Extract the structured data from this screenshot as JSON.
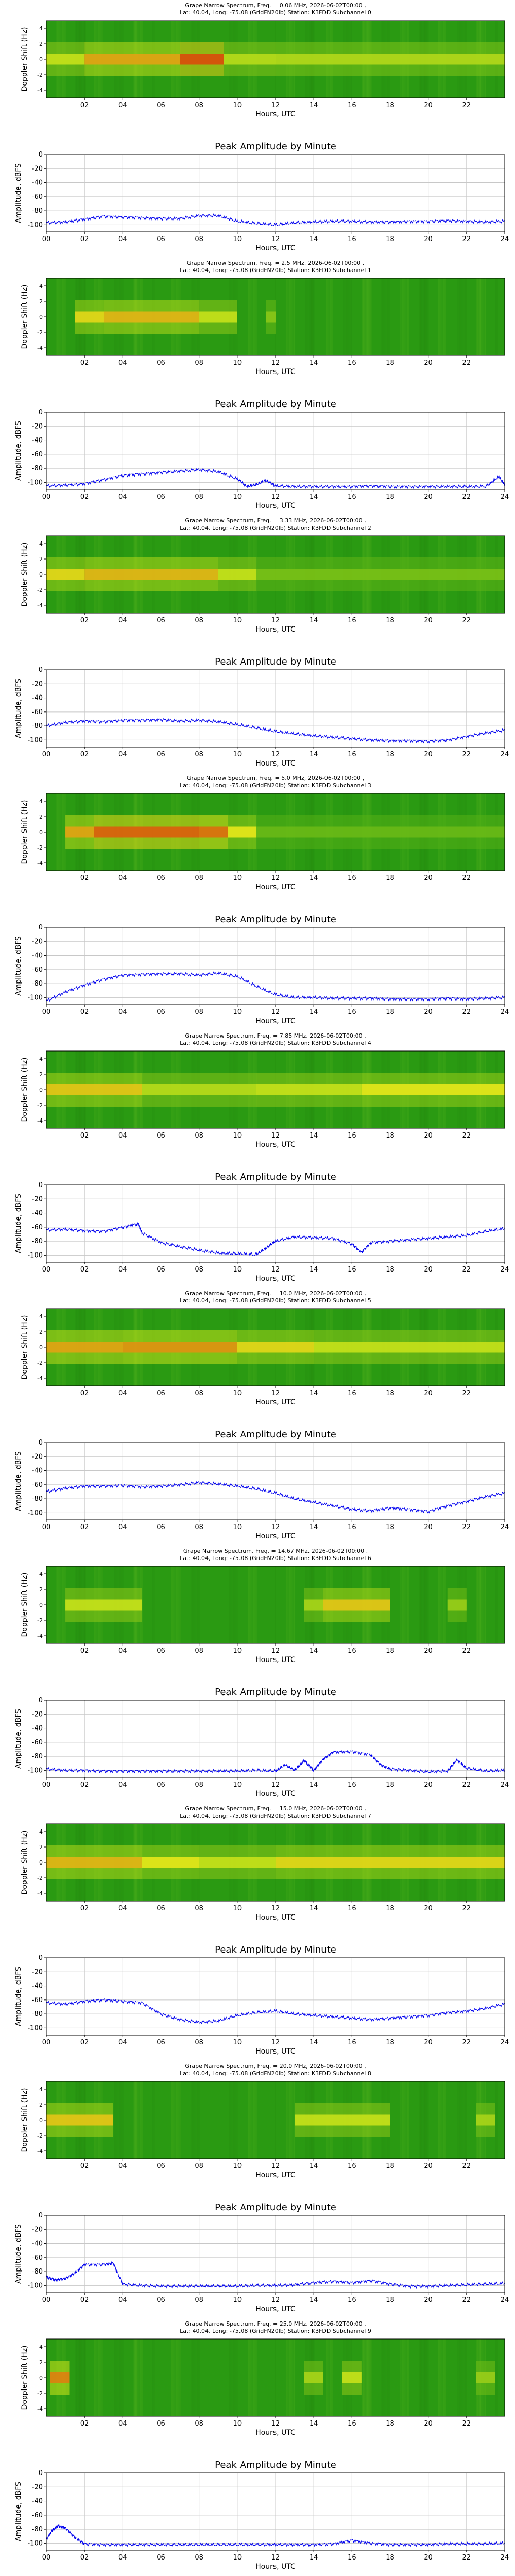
{
  "colors": {
    "spectrogram_background": "#2a9a12",
    "spectrogram_hot": "#d83a08",
    "amplitude_line": "#0000ee",
    "grid": "#c8c8c8"
  },
  "common": {
    "spec_title_line2_prefix": "Lat:  40.04, Long: -75.08 (GridFN20lb) Station: K3FDD Subchannel ",
    "spec_ylabel": "Doppler Shift (Hz)",
    "spec_yticks": [
      "4",
      "2",
      "0",
      "-2",
      "-4"
    ],
    "spec_xticks": [
      "02",
      "04",
      "06",
      "08",
      "10",
      "12",
      "14",
      "16",
      "18",
      "20",
      "22"
    ],
    "amp_title": "Peak Amplitude by Minute",
    "amp_ylabel": "Amplitude, dBFS",
    "amp_xticks": [
      "00",
      "02",
      "04",
      "06",
      "08",
      "10",
      "12",
      "14",
      "16",
      "18",
      "20",
      "22",
      "24"
    ],
    "amp_yticks": [
      "0",
      "-20",
      "-40",
      "-60",
      "-80",
      "-100"
    ],
    "xlabel": "Hours, UTC"
  },
  "chart_data": [
    {
      "type": "heatmap",
      "title": "Grape Narrow Spectrum, Freq. = 0.06 MHz, 2026-06-02T00:00 , ",
      "subchannel": "0",
      "xlim": [
        0,
        24
      ],
      "ylim": [
        -5,
        5
      ],
      "bands": [
        {
          "x0": 0,
          "x1": 2,
          "level": 0.45
        },
        {
          "x0": 2,
          "x1": 7,
          "level": 0.7
        },
        {
          "x0": 7,
          "x1": 9.3,
          "level": 0.95
        },
        {
          "x0": 9.3,
          "x1": 12,
          "level": 0.4
        },
        {
          "x0": 12,
          "x1": 24,
          "level": 0.38
        }
      ]
    },
    {
      "type": "line",
      "title": "Peak Amplitude by Minute",
      "xlabel": "Hours, UTC",
      "ylabel": "Amplitude, dBFS",
      "xlim": [
        0,
        24
      ],
      "ylim": [
        -110,
        0
      ],
      "x": [
        0,
        1,
        2,
        3,
        4,
        5,
        6,
        7,
        8,
        9,
        10,
        11,
        12,
        13,
        14,
        15,
        16,
        17,
        18,
        19,
        20,
        21,
        22,
        23,
        24
      ],
      "y": [
        -97,
        -96,
        -92,
        -88,
        -89,
        -90,
        -91,
        -91,
        -87,
        -87,
        -95,
        -98,
        -100,
        -97,
        -96,
        -95,
        -95,
        -96,
        -96,
        -95,
        -95,
        -94,
        -95,
        -96,
        -95
      ]
    },
    {
      "type": "heatmap",
      "title": "Grape Narrow Spectrum, Freq. = 2.5 MHz, 2026-06-02T00:00 , ",
      "subchannel": "1",
      "xlim": [
        0,
        24
      ],
      "ylim": [
        -5,
        5
      ],
      "bands": [
        {
          "x0": 1.5,
          "x1": 3,
          "level": 0.55
        },
        {
          "x0": 3,
          "x1": 8,
          "level": 0.65
        },
        {
          "x0": 8,
          "x1": 10,
          "level": 0.45
        },
        {
          "x0": 11.5,
          "x1": 12,
          "level": 0.25
        }
      ]
    },
    {
      "type": "line",
      "title": "Peak Amplitude by Minute",
      "xlabel": "Hours, UTC",
      "ylabel": "Amplitude, dBFS",
      "xlim": [
        0,
        24
      ],
      "ylim": [
        -110,
        0
      ],
      "x": [
        0,
        1,
        2,
        3,
        4,
        5,
        6,
        7,
        8,
        9,
        10,
        10.5,
        11,
        11.5,
        12,
        13,
        14,
        15,
        16,
        17,
        18,
        19,
        20,
        21,
        22,
        23,
        23.7,
        24
      ],
      "y": [
        -105,
        -104,
        -102,
        -96,
        -90,
        -88,
        -86,
        -84,
        -82,
        -85,
        -95,
        -106,
        -103,
        -97,
        -105,
        -106,
        -106,
        -106,
        -106,
        -105,
        -106,
        -106,
        -106,
        -106,
        -106,
        -106,
        -92,
        -104
      ]
    },
    {
      "type": "heatmap",
      "title": "Grape Narrow Spectrum, Freq. = 3.33 MHz, 2026-06-02T00:00 , ",
      "subchannel": "2",
      "xlim": [
        0,
        24
      ],
      "ylim": [
        -5,
        5
      ],
      "bands": [
        {
          "x0": 0,
          "x1": 2,
          "level": 0.55
        },
        {
          "x0": 2,
          "x1": 9,
          "level": 0.65
        },
        {
          "x0": 9,
          "x1": 11,
          "level": 0.45
        },
        {
          "x0": 11,
          "x1": 24,
          "level": 0.2
        }
      ]
    },
    {
      "type": "line",
      "title": "Peak Amplitude by Minute",
      "xlabel": "Hours, UTC",
      "ylabel": "Amplitude, dBFS",
      "xlim": [
        0,
        24
      ],
      "ylim": [
        -110,
        0
      ],
      "x": [
        0,
        1,
        2,
        3,
        4,
        5,
        6,
        7,
        8,
        9,
        10,
        11,
        12,
        13,
        14,
        15,
        16,
        17,
        18,
        19,
        20,
        21,
        22,
        23,
        24
      ],
      "y": [
        -80,
        -75,
        -73,
        -74,
        -72,
        -72,
        -71,
        -73,
        -72,
        -74,
        -78,
        -83,
        -88,
        -91,
        -94,
        -96,
        -98,
        -100,
        -101,
        -101,
        -102,
        -100,
        -95,
        -90,
        -86
      ]
    },
    {
      "type": "heatmap",
      "title": "Grape Narrow Spectrum, Freq. = 5.0 MHz, 2026-06-02T00:00 , ",
      "subchannel": "3",
      "xlim": [
        0,
        24
      ],
      "ylim": [
        -5,
        5
      ],
      "bands": [
        {
          "x0": 1,
          "x1": 2.5,
          "level": 0.7
        },
        {
          "x0": 2.5,
          "x1": 8,
          "level": 0.9
        },
        {
          "x0": 8,
          "x1": 9.5,
          "level": 0.85
        },
        {
          "x0": 9.5,
          "x1": 11,
          "level": 0.5
        },
        {
          "x0": 11,
          "x1": 24,
          "level": 0.15
        }
      ]
    },
    {
      "type": "line",
      "title": "Peak Amplitude by Minute",
      "xlabel": "Hours, UTC",
      "ylabel": "Amplitude, dBFS",
      "xlim": [
        0,
        24
      ],
      "ylim": [
        -110,
        0
      ],
      "x": [
        0,
        1,
        2,
        3,
        4,
        5,
        6,
        7,
        8,
        9,
        10,
        11,
        12,
        13,
        14,
        15,
        16,
        17,
        18,
        19,
        20,
        21,
        22,
        23,
        24
      ],
      "y": [
        -105,
        -92,
        -82,
        -74,
        -68,
        -67,
        -66,
        -66,
        -68,
        -65,
        -70,
        -84,
        -96,
        -100,
        -100,
        -101,
        -101,
        -101,
        -102,
        -102,
        -102,
        -101,
        -102,
        -101,
        -100
      ]
    },
    {
      "type": "heatmap",
      "title": "Grape Narrow Spectrum, Freq. = 7.85 MHz, 2026-06-02T00:00 , ",
      "subchannel": "4",
      "xlim": [
        0,
        24
      ],
      "ylim": [
        -5,
        5
      ],
      "bands": [
        {
          "x0": 0,
          "x1": 5,
          "level": 0.6
        },
        {
          "x0": 5,
          "x1": 11,
          "level": 0.4
        },
        {
          "x0": 11,
          "x1": 16.5,
          "level": 0.45
        },
        {
          "x0": 16.5,
          "x1": 24,
          "level": 0.5
        }
      ]
    },
    {
      "type": "line",
      "title": "Peak Amplitude by Minute",
      "xlabel": "Hours, UTC",
      "ylabel": "Amplitude, dBFS",
      "xlim": [
        0,
        24
      ],
      "ylim": [
        -110,
        0
      ],
      "x": [
        0,
        1,
        2,
        3,
        4,
        4.8,
        5,
        6,
        7,
        8,
        9,
        10,
        11,
        11.5,
        12,
        13,
        14,
        15,
        16,
        16.5,
        17,
        18,
        19,
        20,
        21,
        22,
        23,
        24
      ],
      "y": [
        -64,
        -63,
        -65,
        -66,
        -60,
        -55,
        -68,
        -82,
        -88,
        -93,
        -97,
        -98,
        -99,
        -90,
        -80,
        -74,
        -75,
        -76,
        -84,
        -96,
        -82,
        -80,
        -78,
        -76,
        -74,
        -72,
        -66,
        -62
      ]
    },
    {
      "type": "heatmap",
      "title": "Grape Narrow Spectrum, Freq. = 10.0 MHz, 2026-06-02T00:00 , ",
      "subchannel": "5",
      "xlim": [
        0,
        24
      ],
      "ylim": [
        -5,
        5
      ],
      "bands": [
        {
          "x0": 0,
          "x1": 4,
          "level": 0.7
        },
        {
          "x0": 4,
          "x1": 10,
          "level": 0.75
        },
        {
          "x0": 10,
          "x1": 14,
          "level": 0.55
        },
        {
          "x0": 14,
          "x1": 24,
          "level": 0.45
        }
      ]
    },
    {
      "type": "line",
      "title": "Peak Amplitude by Minute",
      "xlabel": "Hours, UTC",
      "ylabel": "Amplitude, dBFS",
      "xlim": [
        0,
        24
      ],
      "ylim": [
        -110,
        0
      ],
      "x": [
        0,
        1,
        2,
        3,
        4,
        5,
        6,
        7,
        8,
        9,
        10,
        11,
        12,
        13,
        14,
        15,
        16,
        17,
        18,
        19,
        20,
        21,
        22,
        23,
        24
      ],
      "y": [
        -70,
        -65,
        -62,
        -62,
        -61,
        -63,
        -62,
        -60,
        -57,
        -59,
        -62,
        -66,
        -72,
        -80,
        -85,
        -90,
        -95,
        -97,
        -93,
        -95,
        -98,
        -90,
        -84,
        -77,
        -72
      ]
    },
    {
      "type": "heatmap",
      "title": "Grape Narrow Spectrum, Freq. = 14.67 MHz, 2026-06-02T00:00 , ",
      "subchannel": "6",
      "xlim": [
        0,
        24
      ],
      "ylim": [
        -5,
        5
      ],
      "bands": [
        {
          "x0": 1,
          "x1": 5,
          "level": 0.45
        },
        {
          "x0": 13.5,
          "x1": 14.5,
          "level": 0.35
        },
        {
          "x0": 14.5,
          "x1": 18,
          "level": 0.6
        },
        {
          "x0": 21,
          "x1": 22,
          "level": 0.3
        }
      ]
    },
    {
      "type": "line",
      "title": "Peak Amplitude by Minute",
      "xlabel": "Hours, UTC",
      "ylabel": "Amplitude, dBFS",
      "xlim": [
        0,
        24
      ],
      "ylim": [
        -110,
        0
      ],
      "x": [
        0,
        1,
        2,
        3,
        4,
        5,
        6,
        7,
        8,
        9,
        10,
        11,
        12,
        12.5,
        13,
        13.5,
        14,
        14.5,
        15,
        16,
        17,
        17.5,
        18,
        19,
        20,
        21,
        21.5,
        22,
        23,
        24
      ],
      "y": [
        -98,
        -100,
        -100,
        -101,
        -101,
        -101,
        -101,
        -101,
        -101,
        -101,
        -101,
        -100,
        -101,
        -92,
        -100,
        -86,
        -100,
        -84,
        -74,
        -73,
        -78,
        -92,
        -98,
        -100,
        -102,
        -101,
        -85,
        -97,
        -101,
        -100
      ]
    },
    {
      "type": "heatmap",
      "title": "Grape Narrow Spectrum, Freq. = 15.0 MHz, 2026-06-02T00:00 , ",
      "subchannel": "7",
      "xlim": [
        0,
        24
      ],
      "ylim": [
        -5,
        5
      ],
      "bands": [
        {
          "x0": 0,
          "x1": 5,
          "level": 0.65
        },
        {
          "x0": 5,
          "x1": 8,
          "level": 0.5
        },
        {
          "x0": 8,
          "x1": 12,
          "level": 0.45
        },
        {
          "x0": 12,
          "x1": 24,
          "level": 0.55
        }
      ]
    },
    {
      "type": "line",
      "title": "Peak Amplitude by Minute",
      "xlabel": "Hours, UTC",
      "ylabel": "Amplitude, dBFS",
      "xlim": [
        0,
        24
      ],
      "ylim": [
        -110,
        0
      ],
      "x": [
        0,
        1,
        2,
        3,
        4,
        5,
        6,
        7,
        8,
        9,
        10,
        11,
        12,
        13,
        14,
        15,
        16,
        17,
        18,
        19,
        20,
        21,
        22,
        23,
        24
      ],
      "y": [
        -64,
        -66,
        -62,
        -60,
        -62,
        -64,
        -80,
        -88,
        -92,
        -90,
        -82,
        -78,
        -76,
        -80,
        -82,
        -84,
        -86,
        -88,
        -86,
        -84,
        -82,
        -78,
        -76,
        -72,
        -66
      ]
    },
    {
      "type": "heatmap",
      "title": "Grape Narrow Spectrum, Freq. = 20.0 MHz, 2026-06-02T00:00 , ",
      "subchannel": "8",
      "xlim": [
        0,
        24
      ],
      "ylim": [
        -5,
        5
      ],
      "bands": [
        {
          "x0": 0,
          "x1": 3.5,
          "level": 0.6
        },
        {
          "x0": 13,
          "x1": 18,
          "level": 0.45
        },
        {
          "x0": 22.5,
          "x1": 23.5,
          "level": 0.35
        }
      ]
    },
    {
      "type": "line",
      "title": "Peak Amplitude by Minute",
      "xlabel": "Hours, UTC",
      "ylabel": "Amplitude, dBFS",
      "xlim": [
        0,
        24
      ],
      "ylim": [
        -110,
        0
      ],
      "x": [
        0,
        0.5,
        1,
        1.5,
        2,
        3,
        3.5,
        4,
        5,
        6,
        7,
        8,
        9,
        10,
        11,
        12,
        13,
        14,
        15,
        16,
        17,
        18,
        19,
        20,
        21,
        22,
        23,
        24
      ],
      "y": [
        -88,
        -92,
        -90,
        -82,
        -70,
        -70,
        -68,
        -98,
        -100,
        -101,
        -101,
        -101,
        -101,
        -101,
        -100,
        -100,
        -99,
        -96,
        -94,
        -96,
        -93,
        -98,
        -101,
        -101,
        -100,
        -99,
        -98,
        -97
      ]
    },
    {
      "type": "heatmap",
      "title": "Grape Narrow Spectrum, Freq. = 25.0 MHz, 2026-06-02T00:00 , ",
      "subchannel": "9",
      "xlim": [
        0,
        24
      ],
      "ylim": [
        -5,
        5
      ],
      "bands": [
        {
          "x0": 0.2,
          "x1": 1.2,
          "level": 0.8
        },
        {
          "x0": 13.5,
          "x1": 14.5,
          "level": 0.35
        },
        {
          "x0": 15.5,
          "x1": 16.5,
          "level": 0.45
        },
        {
          "x0": 22.5,
          "x1": 23.5,
          "level": 0.3
        }
      ]
    },
    {
      "type": "line",
      "title": "Peak Amplitude by Minute",
      "xlabel": "Hours, UTC",
      "ylabel": "Amplitude, dBFS",
      "xlim": [
        0,
        24
      ],
      "ylim": [
        -110,
        0
      ],
      "x": [
        0,
        0.3,
        0.6,
        1,
        1.5,
        2,
        3,
        4,
        5,
        6,
        7,
        8,
        9,
        10,
        11,
        12,
        13,
        14,
        15,
        16,
        17,
        18,
        19,
        20,
        21,
        22,
        23,
        24
      ],
      "y": [
        -95,
        -82,
        -75,
        -78,
        -92,
        -101,
        -102,
        -102,
        -102,
        -102,
        -102,
        -102,
        -102,
        -102,
        -102,
        -102,
        -102,
        -102,
        -101,
        -96,
        -100,
        -102,
        -102,
        -102,
        -101,
        -101,
        -101,
        -100
      ]
    }
  ]
}
